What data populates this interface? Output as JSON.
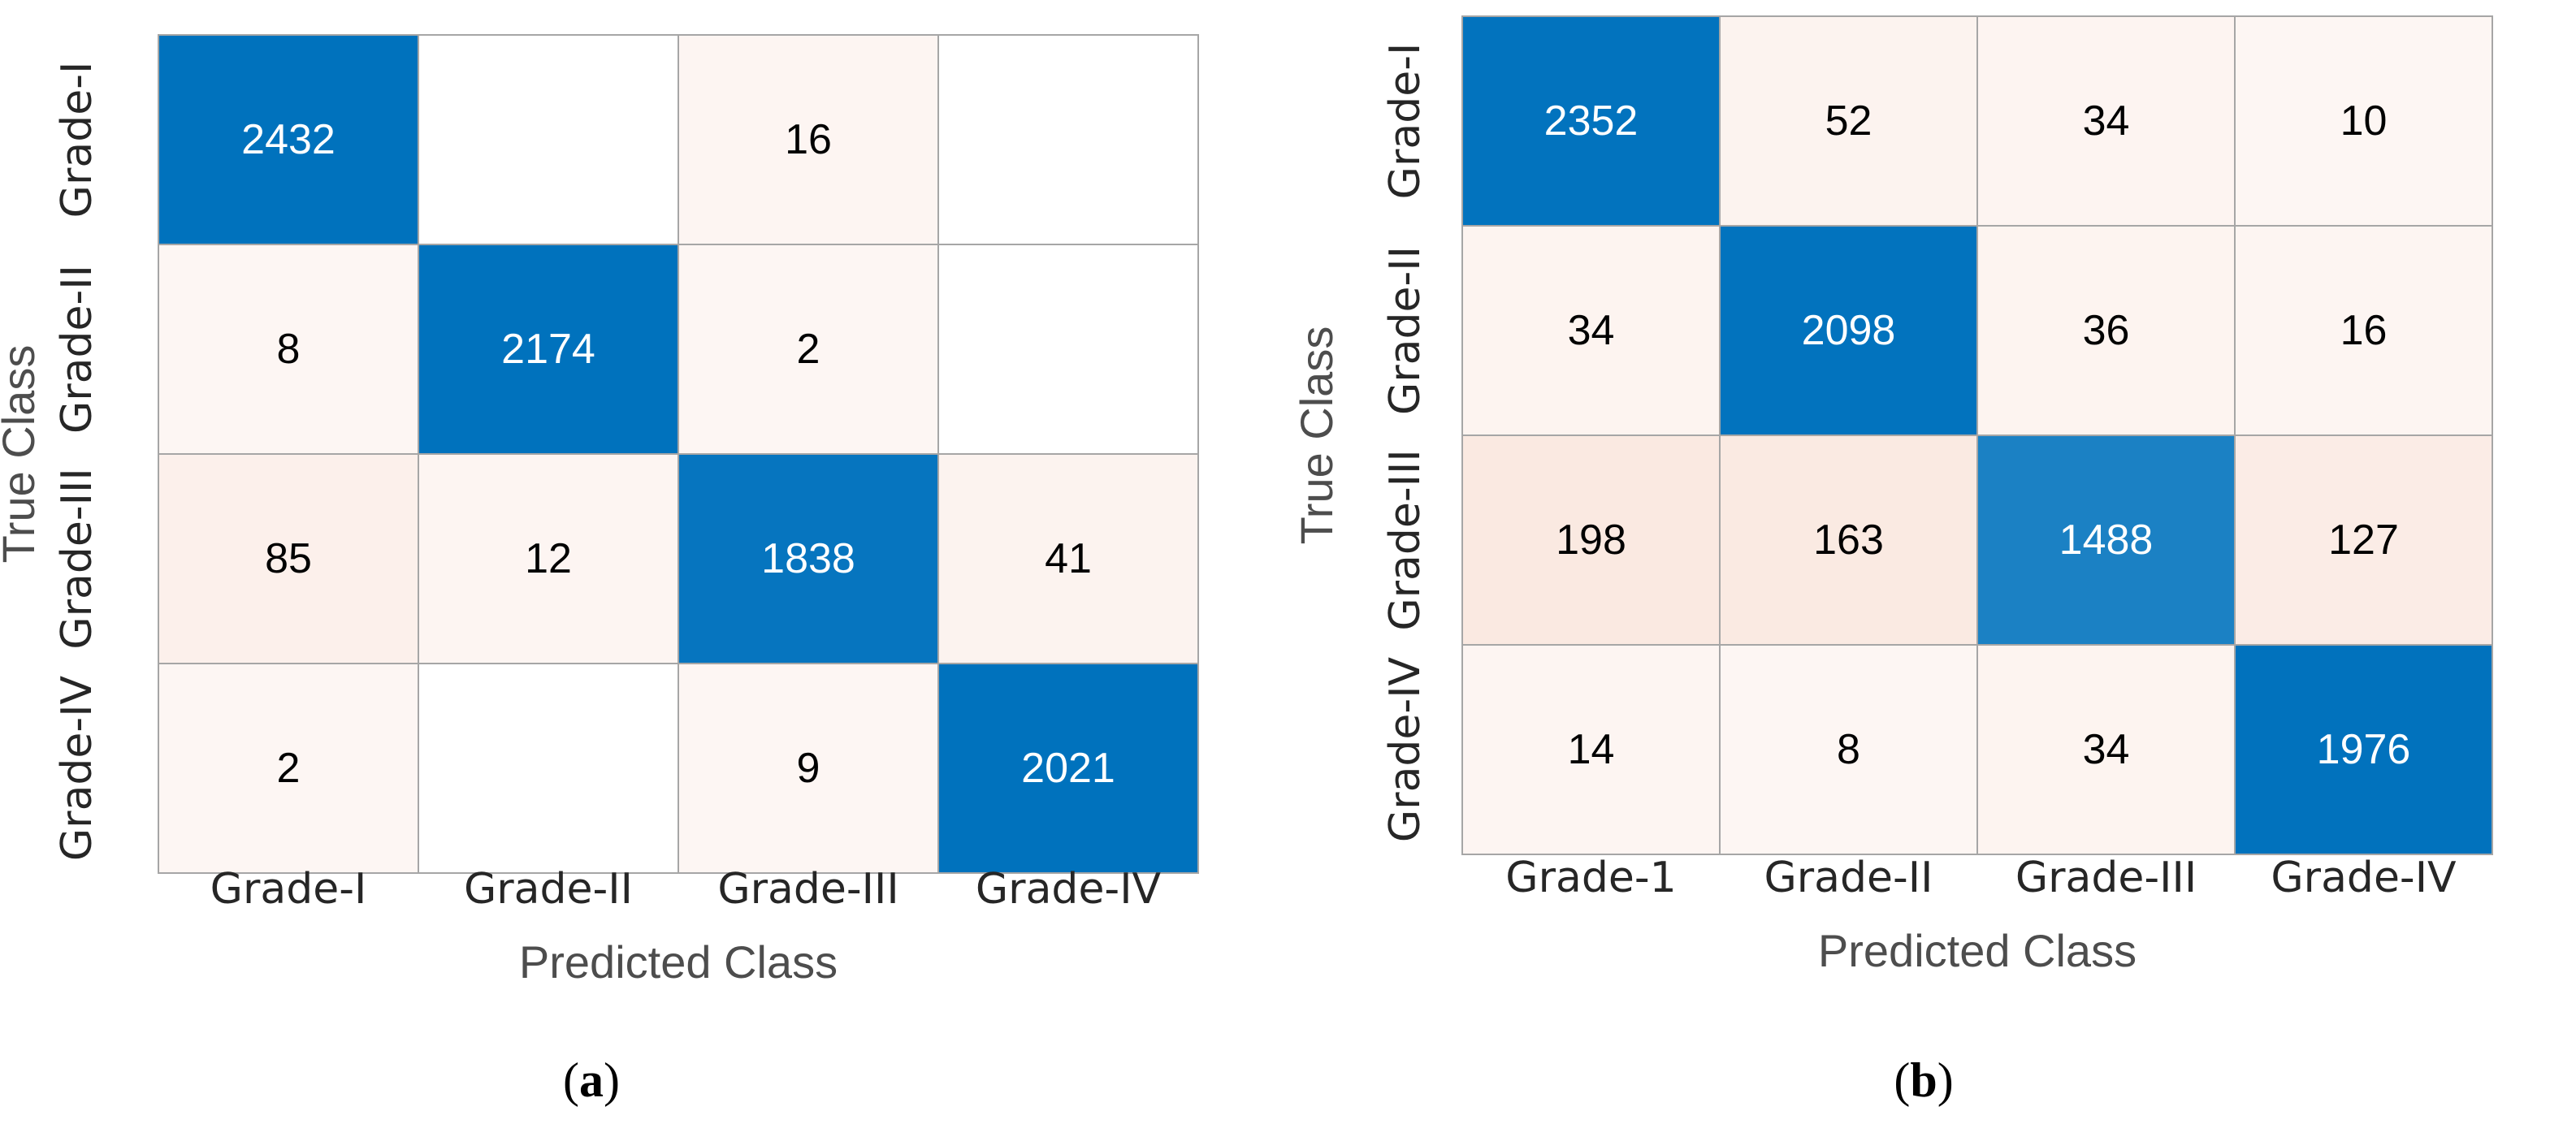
{
  "chart_data": [
    {
      "type": "heatmap",
      "panel": "a",
      "xlabel": "Predicted Class",
      "ylabel": "True Class",
      "x_categories": [
        "Grade-I",
        "Grade-II",
        "Grade-III",
        "Grade-IV"
      ],
      "y_categories": [
        "Grade-I",
        "Grade-II",
        "Grade-III",
        "Grade-IV"
      ],
      "values": [
        [
          2432,
          null,
          16,
          null
        ],
        [
          8,
          2174,
          2,
          null
        ],
        [
          85,
          12,
          1838,
          41
        ],
        [
          2,
          null,
          9,
          2021
        ]
      ],
      "diagonal_color": "#0072bd",
      "offdiagonal_color": "#d95319",
      "label_parts": [
        "(",
        "a",
        ")"
      ]
    },
    {
      "type": "heatmap",
      "panel": "b",
      "xlabel": "Predicted Class",
      "ylabel": "True Class",
      "x_categories": [
        "Grade-1",
        "Grade-II",
        "Grade-III",
        "Grade-IV"
      ],
      "y_categories": [
        "Grade-I",
        "Grade-II",
        "Grade-III",
        "Grade-IV"
      ],
      "values": [
        [
          2352,
          52,
          34,
          10
        ],
        [
          34,
          2098,
          36,
          16
        ],
        [
          198,
          163,
          1488,
          127
        ],
        [
          14,
          8,
          34,
          1976
        ]
      ],
      "diagonal_color": "#0072bd",
      "offdiagonal_color": "#d95319",
      "label_parts": [
        "(",
        "b",
        ")"
      ]
    }
  ]
}
